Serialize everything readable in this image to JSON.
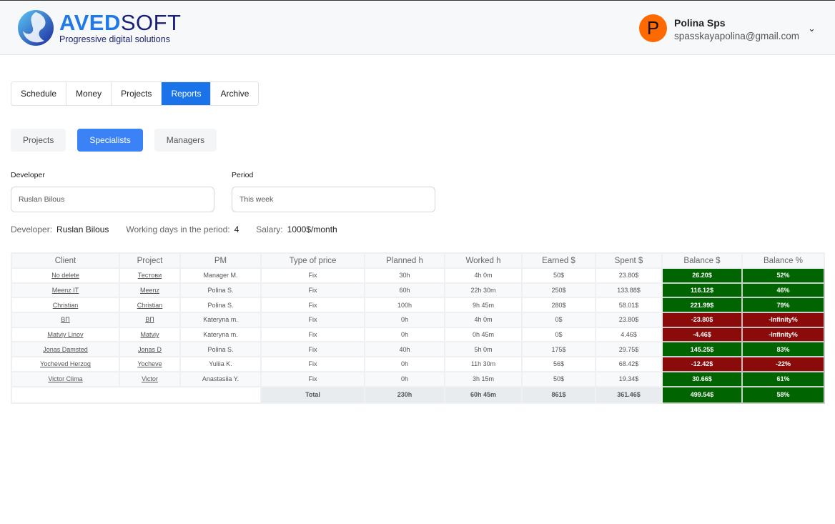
{
  "header": {
    "brand_bold": "AVED",
    "brand_rest": "SOFT",
    "tagline": "Progressive digital solutions",
    "user_initial": "P",
    "user_name": "Polina Sps",
    "user_email": "spasskayapolina@gmail.com"
  },
  "tabs": [
    {
      "label": "Schedule"
    },
    {
      "label": "Money"
    },
    {
      "label": "Projects"
    },
    {
      "label": "Reports",
      "active": true
    },
    {
      "label": "Archive"
    }
  ],
  "subtabs": [
    {
      "label": "Projects"
    },
    {
      "label": "Specialists",
      "active": true
    },
    {
      "label": "Managers"
    }
  ],
  "filters": {
    "developer_label": "Developer",
    "developer_value": "Ruslan Bilous",
    "period_label": "Period",
    "period_value": "This week"
  },
  "info": {
    "developer_label": "Developer:",
    "developer": "Ruslan Bilous",
    "days_label": "Working days in the period:",
    "days": "4",
    "salary_label": "Salary:",
    "salary": "1000$/month"
  },
  "colors": {
    "positive": "#006400",
    "negative": "#8b0a0a",
    "accent": "#1a73e8"
  },
  "table": {
    "headers": [
      "Client",
      "Project",
      "PM",
      "Type of price",
      "Planned h",
      "Worked h",
      "Earned $",
      "Spent $",
      "Balance $",
      "Balance %"
    ],
    "rows": [
      [
        "No delete",
        "Тестови",
        "Manager M.",
        "Fix",
        "30h",
        "4h 0m",
        "50$",
        "23.80$",
        "26.20$",
        "52%"
      ],
      [
        "Meenz IT",
        "Meenz",
        "Polina S.",
        "Fix",
        "60h",
        "22h 30m",
        "250$",
        "133.88$",
        "116.12$",
        "46%"
      ],
      [
        "Christian",
        "Christian",
        "Polina S.",
        "Fix",
        "100h",
        "9h 45m",
        "280$",
        "58.01$",
        "221.99$",
        "79%"
      ],
      [
        "ВП",
        "ВП",
        "Kateryna m.",
        "Fix",
        "0h",
        "4h 0m",
        "0$",
        "23.80$",
        "-23.80$",
        "-Infinity%"
      ],
      [
        "Matviy Linov",
        "Matviy",
        "Kateryna m.",
        "Fix",
        "0h",
        "0h 45m",
        "0$",
        "4.46$",
        "-4.46$",
        "-Infinity%"
      ],
      [
        "Jonas Damsted",
        "Jonas D",
        "Polina S.",
        "Fix",
        "40h",
        "5h 0m",
        "175$",
        "29.75$",
        "145.25$",
        "83%"
      ],
      [
        "Yocheved Herzog",
        "Yocheve",
        "Yuliia K.",
        "Fix",
        "0h",
        "11h 30m",
        "56$",
        "68.42$",
        "-12.42$",
        "-22%"
      ],
      [
        "Victor Clima",
        "Victor",
        "Anastasiia Y.",
        "Fix",
        "0h",
        "3h 15m",
        "50$",
        "19.34$",
        "30.66$",
        "61%"
      ]
    ],
    "total": [
      "Total",
      "230h",
      "60h 45m",
      "861$",
      "361.46$",
      "499.54$",
      "58%"
    ]
  }
}
